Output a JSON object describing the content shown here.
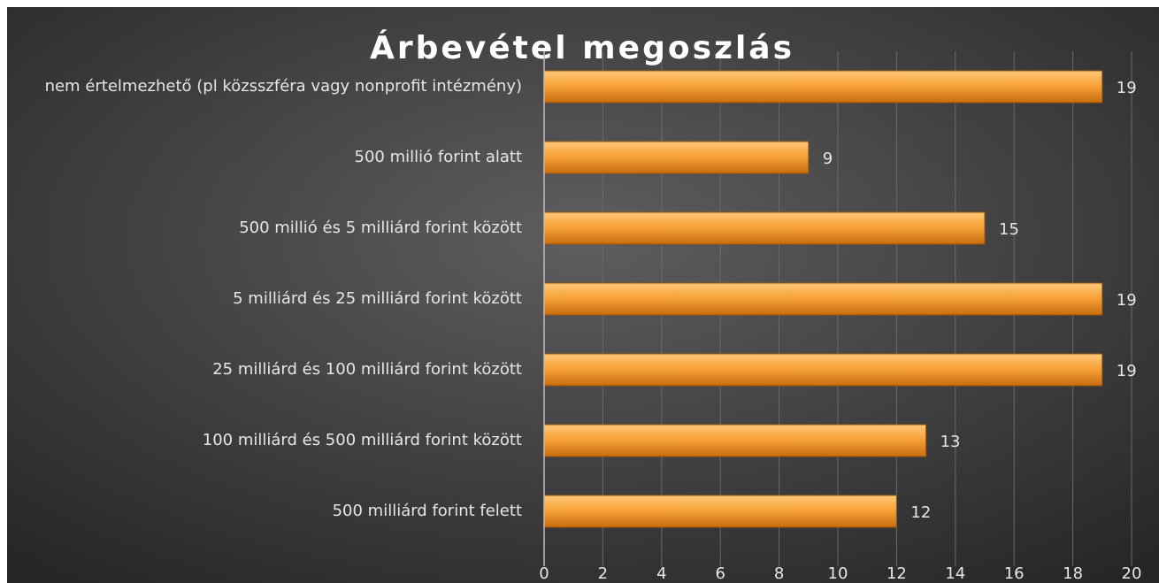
{
  "chart_data": {
    "type": "barh",
    "title": "Árbevétel megoszlás",
    "categories": [
      "nem értelmezhető (pl közsszféra vagy nonprofit intézmény)",
      "500 millió forint alatt",
      "500 millió és 5 milliárd forint között",
      "5 milliárd és 25 milliárd forint között",
      "25 milliárd és 100 milliárd forint között",
      "100 milliárd és 500 milliárd forint között",
      "500 milliárd forint felett"
    ],
    "values": [
      19,
      9,
      15,
      19,
      19,
      13,
      12
    ],
    "color": "#f39a2e",
    "xlim": [
      0,
      20
    ],
    "xticks": [
      0,
      2,
      4,
      6,
      8,
      10,
      12,
      14,
      16,
      18,
      20
    ],
    "grid": true
  }
}
